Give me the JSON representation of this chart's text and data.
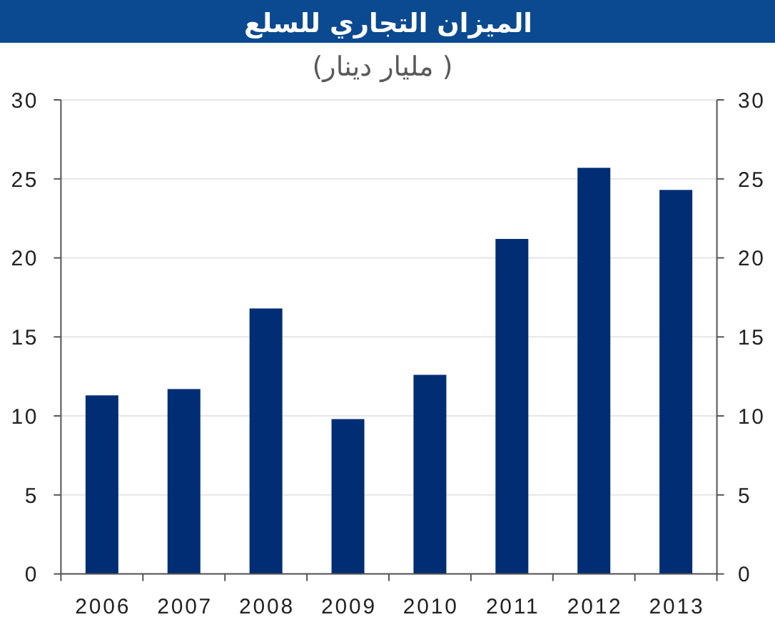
{
  "chart_data": {
    "type": "bar",
    "title": "الميزان التجاري للسلع",
    "subtitle": "( مليار دينار)",
    "categories": [
      "2006",
      "2007",
      "2008",
      "2009",
      "2010",
      "2011",
      "2012",
      "2013"
    ],
    "values": [
      11.3,
      11.7,
      16.8,
      9.8,
      12.6,
      21.2,
      25.7,
      24.3
    ],
    "color": "#002d74",
    "ylim": [
      0,
      30
    ],
    "yticks": [
      0,
      5,
      10,
      15,
      20,
      25,
      30
    ],
    "y2lim": [
      0,
      30
    ],
    "y2ticks": [
      0,
      5,
      10,
      15,
      20,
      25,
      30
    ],
    "grid": "y"
  }
}
